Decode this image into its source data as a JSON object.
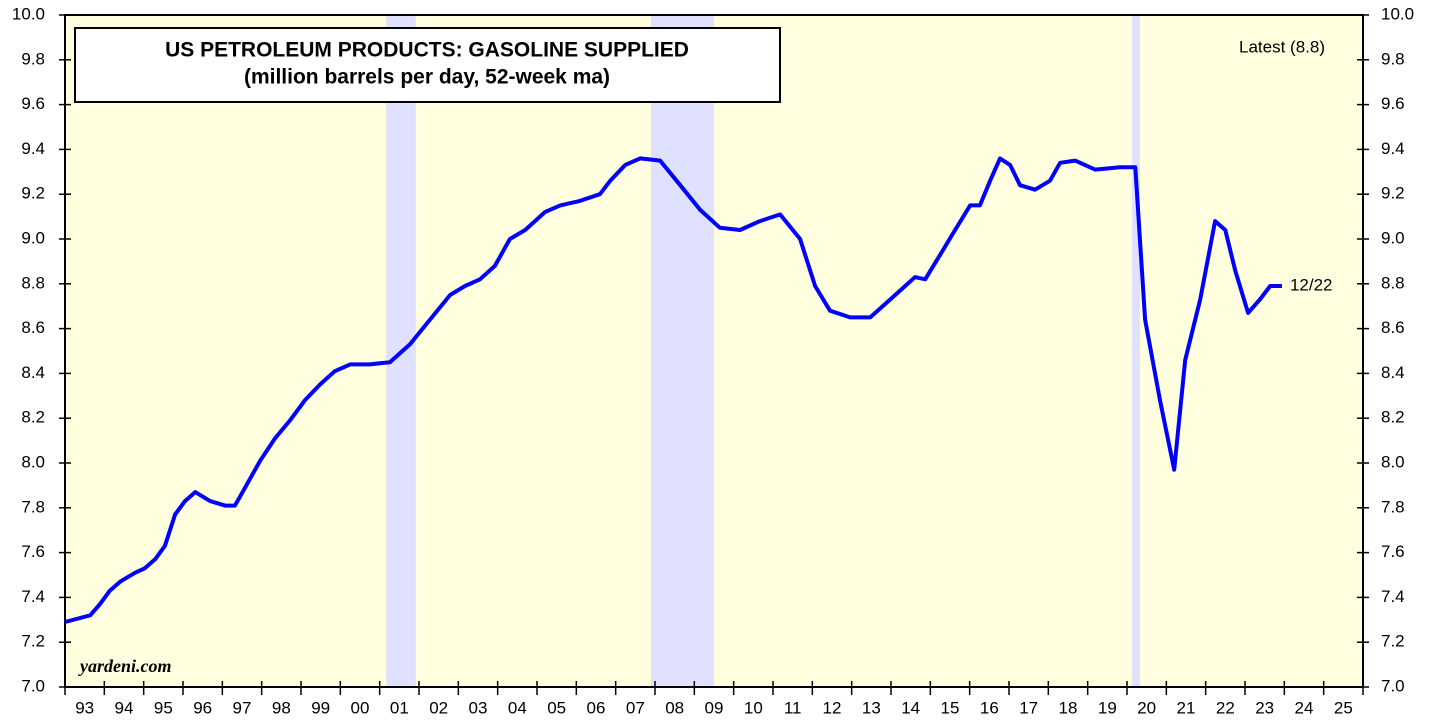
{
  "chart_data": {
    "type": "line",
    "title": "US PETROLEUM PRODUCTS: GASOLINE SUPPLIED",
    "subtitle": "(million barrels per day, 52-week ma)",
    "annotation": "Latest (8.8)",
    "end_label": "12/22",
    "source": "yardeni.com",
    "recessions": [
      [
        2001.17,
        2001.92
      ],
      [
        2007.9,
        2009.5
      ],
      [
        2020.13,
        2020.33
      ]
    ],
    "recession_color": "#e0e0ff",
    "background": "#ffffe0",
    "xlim": [
      1993,
      2026
    ],
    "xticks": [
      1993,
      1994,
      1995,
      1996,
      1997,
      1998,
      1999,
      2000,
      2001,
      2002,
      2003,
      2004,
      2005,
      2006,
      2007,
      2008,
      2009,
      2010,
      2011,
      2012,
      2013,
      2014,
      2015,
      2016,
      2017,
      2018,
      2019,
      2020,
      2021,
      2022,
      2023,
      2024,
      2025,
      2026
    ],
    "xtick_labels": [
      {
        "value": 1993.5,
        "label": "93"
      },
      {
        "value": 1994.5,
        "label": "94"
      },
      {
        "value": 1995.5,
        "label": "95"
      },
      {
        "value": 1996.5,
        "label": "96"
      },
      {
        "value": 1997.5,
        "label": "97"
      },
      {
        "value": 1998.5,
        "label": "98"
      },
      {
        "value": 1999.5,
        "label": "99"
      },
      {
        "value": 2000.5,
        "label": "00"
      },
      {
        "value": 2001.5,
        "label": "01"
      },
      {
        "value": 2002.5,
        "label": "02"
      },
      {
        "value": 2003.5,
        "label": "03"
      },
      {
        "value": 2004.5,
        "label": "04"
      },
      {
        "value": 2005.5,
        "label": "05"
      },
      {
        "value": 2006.5,
        "label": "06"
      },
      {
        "value": 2007.5,
        "label": "07"
      },
      {
        "value": 2008.5,
        "label": "08"
      },
      {
        "value": 2009.5,
        "label": "09"
      },
      {
        "value": 2010.5,
        "label": "10"
      },
      {
        "value": 2011.5,
        "label": "11"
      },
      {
        "value": 2012.5,
        "label": "12"
      },
      {
        "value": 2013.5,
        "label": "13"
      },
      {
        "value": 2014.5,
        "label": "14"
      },
      {
        "value": 2015.5,
        "label": "15"
      },
      {
        "value": 2016.5,
        "label": "16"
      },
      {
        "value": 2017.5,
        "label": "17"
      },
      {
        "value": 2018.5,
        "label": "18"
      },
      {
        "value": 2019.5,
        "label": "19"
      },
      {
        "value": 2020.5,
        "label": "20"
      },
      {
        "value": 2021.5,
        "label": "21"
      },
      {
        "value": 2022.5,
        "label": "22"
      },
      {
        "value": 2023.5,
        "label": "23"
      },
      {
        "value": 2024.5,
        "label": "24"
      },
      {
        "value": 2025.5,
        "label": "25"
      }
    ],
    "ylim": [
      7,
      10
    ],
    "yticks": [
      {
        "value": 7,
        "label": "7.0"
      },
      7.2,
      7.4,
      7.6,
      7.8,
      {
        "value": 8,
        "label": "8.0"
      },
      8.2,
      8.4,
      8.6,
      8.8,
      {
        "value": 9,
        "label": "9.0"
      },
      9.2,
      9.4,
      9.6,
      9.8,
      {
        "value": 10,
        "label": "10.0"
      }
    ],
    "y2lim": [
      7,
      10
    ],
    "y2ticks": [
      {
        "value": 7,
        "label": "7.0"
      },
      7.2,
      7.4,
      7.6,
      7.8,
      {
        "value": 8,
        "label": "8.0"
      },
      8.2,
      8.4,
      8.6,
      8.8,
      {
        "value": 9,
        "label": "9.0"
      },
      9.2,
      9.4,
      9.6,
      9.8,
      {
        "value": 10,
        "label": "10.0"
      }
    ],
    "x": [
      1993.0,
      1993.64,
      1993.89,
      1994.14,
      1994.4,
      1994.78,
      1995.03,
      1995.29,
      1995.54,
      1995.8,
      1996.05,
      1996.31,
      1996.69,
      1997.07,
      1997.32,
      1997.58,
      1997.96,
      1998.34,
      1998.72,
      1999.1,
      1999.48,
      1999.86,
      2000.25,
      2000.75,
      2001.26,
      2001.77,
      2002.28,
      2002.79,
      2003.17,
      2003.55,
      2003.93,
      2004.31,
      2004.7,
      2005.2,
      2005.59,
      2006.09,
      2006.6,
      2006.86,
      2007.24,
      2007.62,
      2008.13,
      2008.64,
      2009.15,
      2009.65,
      2010.16,
      2010.67,
      2011.18,
      2011.69,
      2012.07,
      2012.45,
      2012.96,
      2013.47,
      2013.98,
      2014.36,
      2014.61,
      2014.87,
      2015.25,
      2015.63,
      2016.01,
      2016.26,
      2016.52,
      2016.77,
      2017.03,
      2017.28,
      2017.66,
      2018.04,
      2018.3,
      2018.68,
      2019.19,
      2019.82,
      2020.21,
      2020.46,
      2020.84,
      2021.2,
      2021.48,
      2021.86,
      2022.24,
      2022.5,
      2022.75,
      2023.08,
      2023.38,
      2023.64,
      2023.94
    ],
    "series": [
      {
        "name": "Gasoline supplied",
        "color": "#0000ff",
        "values": [
          7.29,
          7.32,
          7.37,
          7.43,
          7.47,
          7.51,
          7.53,
          7.57,
          7.63,
          7.77,
          7.83,
          7.87,
          7.83,
          7.81,
          7.81,
          7.89,
          8.01,
          8.11,
          8.19,
          8.28,
          8.35,
          8.41,
          8.44,
          8.44,
          8.45,
          8.53,
          8.64,
          8.75,
          8.79,
          8.82,
          8.88,
          9.0,
          9.04,
          9.12,
          9.15,
          9.17,
          9.2,
          9.26,
          9.33,
          9.36,
          9.35,
          9.24,
          9.13,
          9.05,
          9.04,
          9.08,
          9.11,
          9.0,
          8.79,
          8.68,
          8.65,
          8.65,
          8.73,
          8.79,
          8.83,
          8.82,
          8.93,
          9.04,
          9.15,
          9.15,
          9.26,
          9.36,
          9.33,
          9.24,
          9.22,
          9.26,
          9.34,
          9.35,
          9.31,
          9.32,
          9.32,
          8.64,
          8.28,
          7.97,
          8.46,
          8.73,
          9.08,
          9.04,
          8.86,
          8.67,
          8.73,
          8.79,
          8.79
        ]
      }
    ]
  }
}
